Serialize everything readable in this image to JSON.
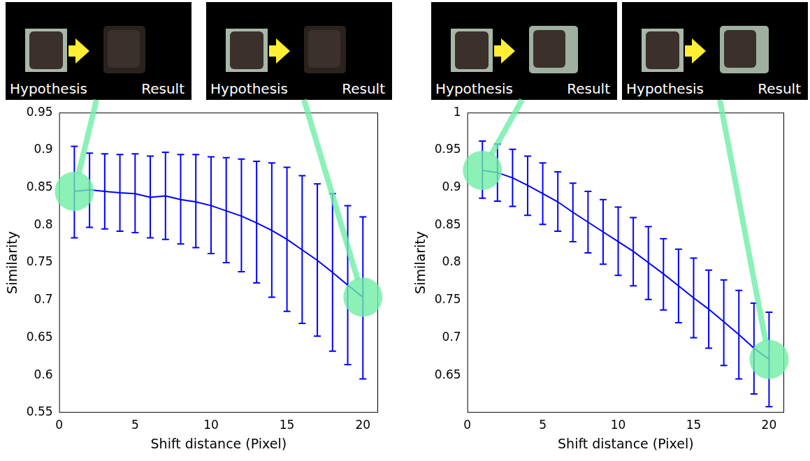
{
  "chart_data": [
    {
      "type": "line",
      "xlabel": "Shift distance (Pixel)",
      "ylabel": "Similarity",
      "x": [
        1,
        2,
        3,
        4,
        5,
        6,
        7,
        8,
        9,
        10,
        11,
        12,
        13,
        14,
        15,
        16,
        17,
        18,
        19,
        20
      ],
      "values": [
        0.845,
        0.847,
        0.845,
        0.843,
        0.842,
        0.837,
        0.839,
        0.834,
        0.831,
        0.826,
        0.819,
        0.812,
        0.803,
        0.793,
        0.781,
        0.767,
        0.753,
        0.737,
        0.72,
        0.704
      ],
      "error_low": [
        0.783,
        0.797,
        0.795,
        0.792,
        0.79,
        0.783,
        0.781,
        0.775,
        0.77,
        0.762,
        0.75,
        0.738,
        0.723,
        0.704,
        0.685,
        0.669,
        0.652,
        0.632,
        0.614,
        0.595
      ],
      "error_high": [
        0.905,
        0.896,
        0.895,
        0.894,
        0.895,
        0.892,
        0.897,
        0.894,
        0.894,
        0.891,
        0.89,
        0.888,
        0.885,
        0.883,
        0.877,
        0.866,
        0.855,
        0.842,
        0.826,
        0.811
      ],
      "color": "#0000ff",
      "xlim": [
        0,
        21
      ],
      "xticks": [
        0,
        5,
        10,
        15,
        20
      ],
      "ylim": [
        0.55,
        0.95
      ],
      "yticks": [
        0.55,
        0.6,
        0.65,
        0.7,
        0.75,
        0.8,
        0.85,
        0.9,
        0.95
      ],
      "grid": false,
      "annotations": [
        {
          "x": 1,
          "labels": [
            "Hypothesis",
            "Result"
          ]
        },
        {
          "x": 20,
          "labels": [
            "Hypothesis",
            "Result"
          ]
        }
      ]
    },
    {
      "type": "line",
      "xlabel": "Shift distance (Pixel)",
      "ylabel": "Similarity",
      "x": [
        1,
        2,
        3,
        4,
        5,
        6,
        7,
        8,
        9,
        10,
        11,
        12,
        13,
        14,
        15,
        16,
        17,
        18,
        19,
        20
      ],
      "values": [
        0.923,
        0.92,
        0.913,
        0.903,
        0.892,
        0.881,
        0.867,
        0.854,
        0.841,
        0.828,
        0.815,
        0.8,
        0.785,
        0.769,
        0.753,
        0.738,
        0.721,
        0.704,
        0.686,
        0.671
      ],
      "error_low": [
        0.886,
        0.882,
        0.875,
        0.863,
        0.851,
        0.842,
        0.828,
        0.813,
        0.798,
        0.783,
        0.769,
        0.751,
        0.737,
        0.72,
        0.7,
        0.686,
        0.663,
        0.645,
        0.625,
        0.608
      ],
      "error_high": [
        0.962,
        0.958,
        0.951,
        0.942,
        0.933,
        0.921,
        0.906,
        0.895,
        0.884,
        0.874,
        0.86,
        0.848,
        0.832,
        0.818,
        0.806,
        0.79,
        0.777,
        0.763,
        0.746,
        0.734
      ],
      "color": "#0000ff",
      "xlim": [
        0,
        21
      ],
      "xticks": [
        0,
        5,
        10,
        15,
        20
      ],
      "ylim": [
        0.6,
        1
      ],
      "yticks": [
        0.65,
        0.7,
        0.75,
        0.8,
        0.85,
        0.9,
        0.95,
        1
      ],
      "grid": false,
      "annotations": [
        {
          "x": 1,
          "labels": [
            "Hypothesis",
            "Result"
          ]
        },
        {
          "x": 20,
          "labels": [
            "Hypothesis",
            "Result"
          ]
        }
      ]
    }
  ]
}
